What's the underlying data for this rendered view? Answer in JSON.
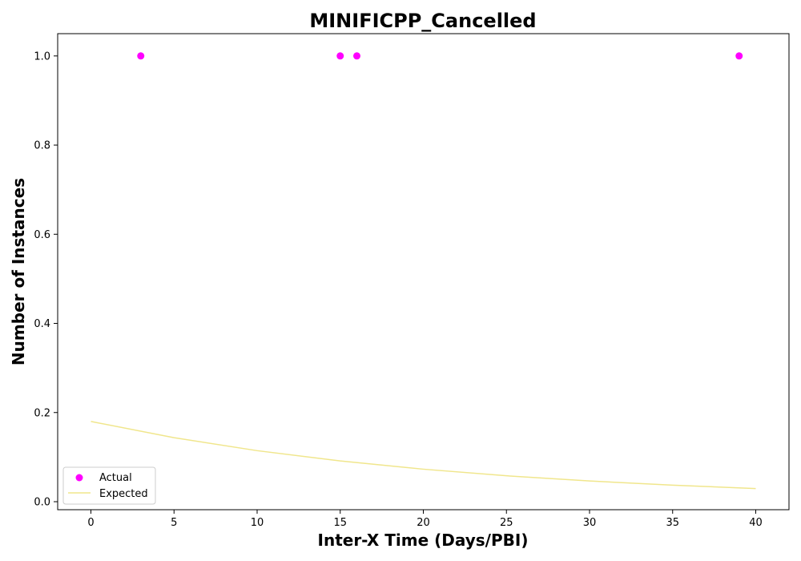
{
  "chart_data": {
    "type": "scatter",
    "title": "MINIFICPP_Cancelled",
    "xlabel": "Inter-X Time (Days/PBI)",
    "ylabel": "Number of Instances",
    "xlim": [
      -2,
      42
    ],
    "ylim": [
      -0.018,
      1.05
    ],
    "x_ticks": [
      0,
      5,
      10,
      15,
      20,
      25,
      30,
      35,
      40
    ],
    "y_ticks": [
      0.0,
      0.2,
      0.4,
      0.6,
      0.8,
      1.0
    ],
    "x_tick_labels": [
      "0",
      "5",
      "10",
      "15",
      "20",
      "25",
      "30",
      "35",
      "40"
    ],
    "y_tick_labels": [
      "0.0",
      "0.2",
      "0.4",
      "0.6",
      "0.8",
      "1.0"
    ],
    "grid": false,
    "legend_position": "lower-left",
    "series": [
      {
        "name": "Actual",
        "kind": "scatter",
        "color": "#ff00ff",
        "x": [
          3,
          15,
          16,
          39
        ],
        "y": [
          1.0,
          1.0,
          1.0,
          1.0
        ]
      },
      {
        "name": "Expected",
        "kind": "line",
        "color": "#f0e68c",
        "x": [
          0,
          5,
          10,
          15,
          20,
          25,
          30,
          35,
          40
        ],
        "y": [
          0.18,
          0.1436,
          0.1145,
          0.0914,
          0.0729,
          0.0581,
          0.0464,
          0.037,
          0.0295
        ]
      }
    ]
  }
}
